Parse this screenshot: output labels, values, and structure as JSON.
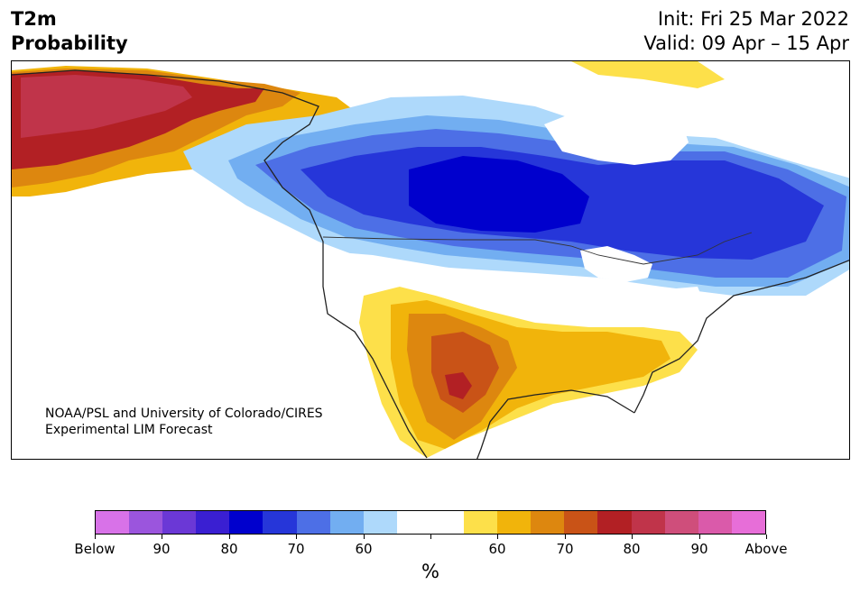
{
  "title": "T2m\nProbability",
  "init_line": "Init: Fri 25 Mar 2022",
  "valid_line": "Valid: 09 Apr – 15 Apr",
  "credit_line1": "NOAA/PSL and University of Colorado/CIRES",
  "credit_line2": "Experimental LIM Forecast",
  "colorbar": {
    "unit": "%",
    "colors": [
      "#d872e8",
      "#9b55dd",
      "#6b38d6",
      "#3a1fd2",
      "#0000cd",
      "#2636d9",
      "#4d6fe6",
      "#72aef1",
      "#aed9fb",
      "#ffffff",
      "#ffffff",
      "#fde04a",
      "#f1b40b",
      "#dd870f",
      "#c95317",
      "#b22024",
      "#c0344a",
      "#cf4e7b",
      "#da5aaa",
      "#e76ed8"
    ],
    "tick_labels": [
      "Below",
      "90",
      "80",
      "70",
      "60",
      "",
      "60",
      "70",
      "80",
      "90",
      "Above"
    ]
  },
  "legend_colors": {
    "below_strong": "#0000cd",
    "below_mid": "#2636d9",
    "below_light": "#72aef1",
    "above_light": "#fde04a",
    "above_mid": "#f1b40b",
    "above_strong": "#dd870f",
    "above_deep": "#b22024"
  }
}
